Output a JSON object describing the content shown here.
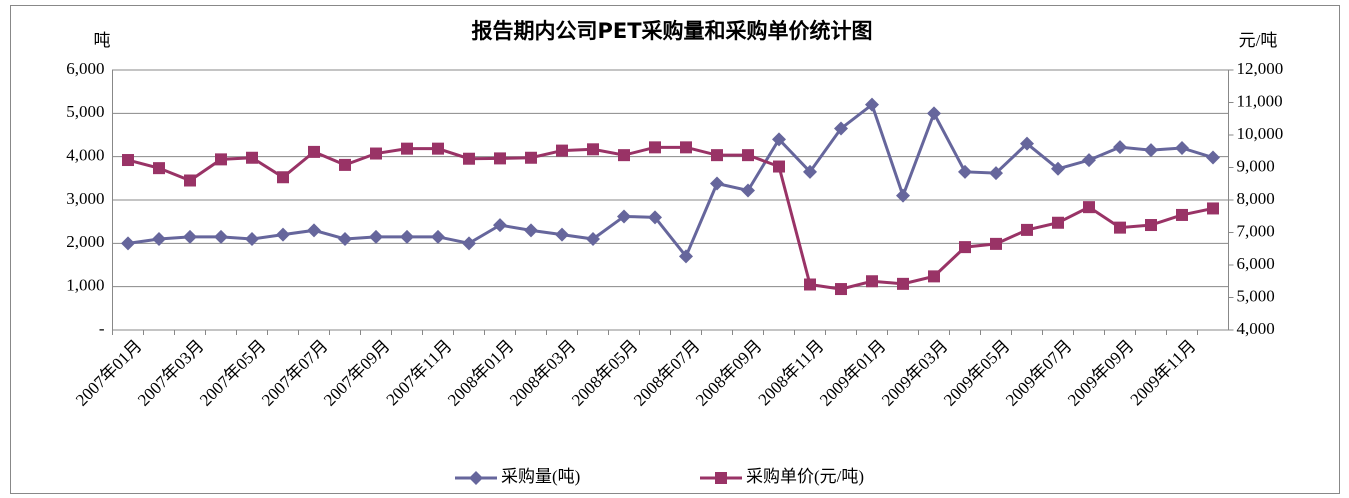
{
  "chart_data": {
    "type": "line",
    "title": "报告期内公司PET采购量和采购单价统计图",
    "y_label": "吨",
    "y2_label": "元/吨",
    "categories": [
      "2007年01月",
      null,
      "2007年03月",
      null,
      "2007年05月",
      null,
      "2007年07月",
      null,
      "2007年09月",
      null,
      "2007年11月",
      null,
      "2008年01月",
      null,
      "2008年03月",
      null,
      "2008年05月",
      null,
      "2008年07月",
      null,
      "2008年09月",
      null,
      "2008年11月",
      null,
      "2009年01月",
      null,
      "2009年03月",
      null,
      "2009年05月",
      null,
      "2009年07月",
      null,
      "2009年09月",
      null,
      "2009年11月",
      null
    ],
    "series": [
      {
        "name": "采购量(吨)",
        "color": "#66669c",
        "marker": "diamond",
        "axis": "y",
        "values": [
          2000,
          2100,
          2150,
          2150,
          2100,
          2200,
          2300,
          2100,
          2150,
          2150,
          2150,
          2000,
          2420,
          2300,
          2200,
          2100,
          2620,
          2600,
          1700,
          3380,
          3220,
          4400,
          3650,
          4650,
          5200,
          3100,
          5000,
          3650,
          3620,
          4300,
          3720,
          3920,
          4220,
          4150,
          4200,
          3980
        ]
      },
      {
        "name": "采购单价(元/吨)",
        "color": "#993366",
        "marker": "square",
        "axis": "y2",
        "values": [
          9230,
          8980,
          8600,
          9250,
          9300,
          8700,
          9480,
          9080,
          9430,
          9580,
          9580,
          9270,
          9280,
          9300,
          9520,
          9560,
          9380,
          9620,
          9620,
          9380,
          9380,
          9030,
          5400,
          5260,
          5500,
          5420,
          5650,
          6550,
          6650,
          7080,
          7300,
          7780,
          7150,
          7230,
          7540,
          7740
        ]
      }
    ],
    "ylim": [
      0,
      6000
    ],
    "yticks": [
      {
        "value": 0,
        "label": "-"
      },
      {
        "value": 1000,
        "label": "1,000"
      },
      {
        "value": 2000,
        "label": "2,000"
      },
      {
        "value": 3000,
        "label": "3,000"
      },
      {
        "value": 4000,
        "label": "4,000"
      },
      {
        "value": 5000,
        "label": "5,000"
      },
      {
        "value": 6000,
        "label": "6,000"
      }
    ],
    "y2lim": [
      4000,
      12000
    ],
    "y2ticks": [
      {
        "value": 4000,
        "label": "4,000"
      },
      {
        "value": 5000,
        "label": "5,000"
      },
      {
        "value": 6000,
        "label": "6,000"
      },
      {
        "value": 7000,
        "label": "7,000"
      },
      {
        "value": 8000,
        "label": "8,000"
      },
      {
        "value": 9000,
        "label": "9,000"
      },
      {
        "value": 10000,
        "label": "10,000"
      },
      {
        "value": 11000,
        "label": "11,000"
      },
      {
        "value": 12000,
        "label": "12,000"
      }
    ],
    "grid": true,
    "legend": "bottom"
  }
}
